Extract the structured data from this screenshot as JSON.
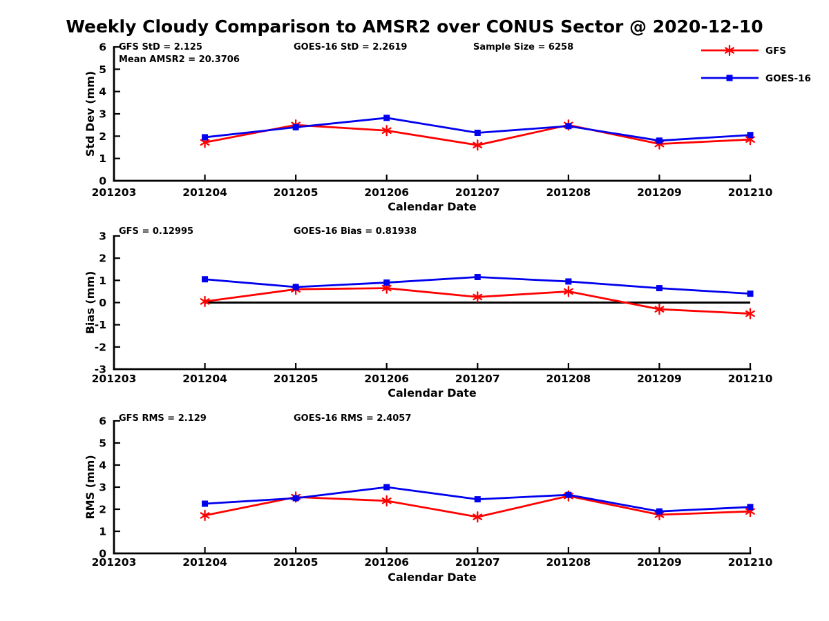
{
  "title": "Weekly Cloudy Comparison to AMSR2 over CONUS Sector @ 2020-12-10",
  "colors": {
    "gfs": "#ff0000",
    "goes16": "#0000ee",
    "axis": "#000000",
    "zero_line": "#000000",
    "background": "#ffffff"
  },
  "legend": {
    "position": "top-right",
    "entries": [
      {
        "label": "GFS",
        "color": "#ff0000",
        "marker": "asterisk"
      },
      {
        "label": "GOES-16",
        "color": "#0000ee",
        "marker": "square"
      }
    ]
  },
  "chart_data": [
    {
      "type": "line",
      "title": "",
      "ylabel": "Std Dev (mm)",
      "xlabel": "Calendar Date",
      "ylim": [
        0,
        6
      ],
      "yticks": [
        0,
        1,
        2,
        3,
        4,
        5,
        6
      ],
      "xticks": [
        "201203",
        "201204",
        "201205",
        "201206",
        "201207",
        "201208",
        "201209",
        "201210"
      ],
      "categories": [
        "201204",
        "201205",
        "201206",
        "201207",
        "201208",
        "201209",
        "201210"
      ],
      "grid": false,
      "zero_line": false,
      "show_legend": true,
      "series": [
        {
          "name": "GFS",
          "color": "#ff0000",
          "marker": "asterisk",
          "values": [
            1.72,
            2.5,
            2.25,
            1.6,
            2.5,
            1.65,
            1.85
          ]
        },
        {
          "name": "GOES-16",
          "color": "#0000ee",
          "marker": "square",
          "values": [
            1.95,
            2.4,
            2.82,
            2.15,
            2.45,
            1.8,
            2.05
          ]
        }
      ],
      "annotations": [
        {
          "text": "GFS StD = 2.125",
          "col": 0,
          "row": 0
        },
        {
          "text": "Mean AMSR2 = 20.3706",
          "col": 0,
          "row": 1
        },
        {
          "text": "GOES-16 StD = 2.2619",
          "col": 1,
          "row": 0
        },
        {
          "text": "Sample Size = 6258",
          "col": 2,
          "row": 0
        }
      ]
    },
    {
      "type": "line",
      "title": "",
      "ylabel": "Bias (mm)",
      "xlabel": "Calendar Date",
      "ylim": [
        -3,
        3
      ],
      "yticks": [
        -3,
        -2,
        -1,
        0,
        1,
        2,
        3
      ],
      "xticks": [
        "201203",
        "201204",
        "201205",
        "201206",
        "201207",
        "201208",
        "201209",
        "201210"
      ],
      "categories": [
        "201204",
        "201205",
        "201206",
        "201207",
        "201208",
        "201209",
        "201210"
      ],
      "grid": false,
      "zero_line": true,
      "show_legend": false,
      "series": [
        {
          "name": "GFS",
          "color": "#ff0000",
          "marker": "asterisk",
          "values": [
            0.05,
            0.6,
            0.65,
            0.25,
            0.5,
            -0.3,
            -0.5
          ]
        },
        {
          "name": "GOES-16",
          "color": "#0000ee",
          "marker": "square",
          "values": [
            1.05,
            0.7,
            0.9,
            1.15,
            0.95,
            0.65,
            0.4
          ]
        }
      ],
      "annotations": [
        {
          "text": "GFS = 0.12995",
          "col": 0,
          "row": 0
        },
        {
          "text": "GOES-16 Bias = 0.81938",
          "col": 1,
          "row": 0
        }
      ]
    },
    {
      "type": "line",
      "title": "",
      "ylabel": "RMS (mm)",
      "xlabel": "Calendar Date",
      "ylim": [
        0,
        6
      ],
      "yticks": [
        0,
        1,
        2,
        3,
        4,
        5,
        6
      ],
      "xticks": [
        "201203",
        "201204",
        "201205",
        "201206",
        "201207",
        "201208",
        "201209",
        "201210"
      ],
      "categories": [
        "201204",
        "201205",
        "201206",
        "201207",
        "201208",
        "201209",
        "201210"
      ],
      "grid": false,
      "zero_line": false,
      "show_legend": false,
      "series": [
        {
          "name": "GFS",
          "color": "#ff0000",
          "marker": "asterisk",
          "values": [
            1.72,
            2.55,
            2.38,
            1.65,
            2.6,
            1.75,
            1.9
          ]
        },
        {
          "name": "GOES-16",
          "color": "#0000ee",
          "marker": "square",
          "values": [
            2.25,
            2.5,
            3.0,
            2.45,
            2.65,
            1.9,
            2.1
          ]
        }
      ],
      "annotations": [
        {
          "text": "GFS RMS = 2.129",
          "col": 0,
          "row": 0
        },
        {
          "text": "GOES-16 RMS = 2.4057",
          "col": 1,
          "row": 0
        }
      ]
    }
  ]
}
